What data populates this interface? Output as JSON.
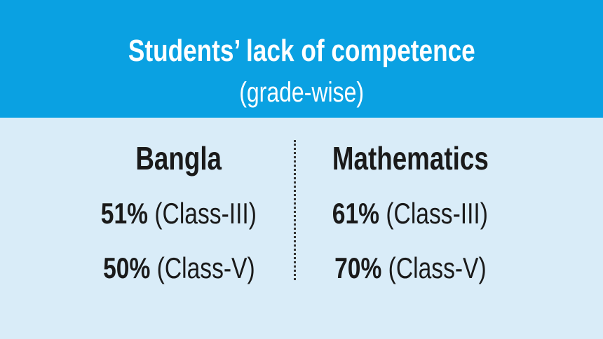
{
  "header": {
    "title": "Students’ lack of competence",
    "subtitle": "(grade-wise)"
  },
  "columns": [
    {
      "heading": "Bangla",
      "rows": [
        {
          "percent": "51%",
          "label": "(Class-III)"
        },
        {
          "percent": "50%",
          "label": "(Class-V)"
        }
      ]
    },
    {
      "heading": "Mathematics",
      "rows": [
        {
          "percent": "61%",
          "label": "(Class-III)"
        },
        {
          "percent": "70%",
          "label": "(Class-V)"
        }
      ]
    }
  ]
}
